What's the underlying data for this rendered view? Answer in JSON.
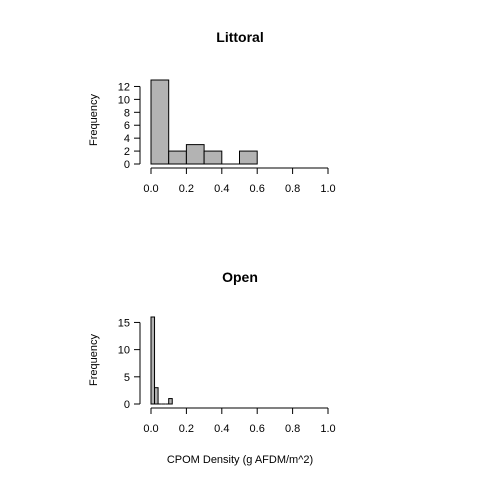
{
  "chart_data": [
    {
      "type": "bar",
      "title": "Littoral",
      "xlabel": "",
      "ylabel": "Frequency",
      "x_bin_edges": [
        0.0,
        0.1,
        0.2,
        0.3,
        0.4,
        0.5,
        0.6
      ],
      "values": [
        13,
        2,
        3,
        2,
        0,
        2
      ],
      "xlim": [
        0.0,
        1.0
      ],
      "ylim": [
        0,
        13
      ],
      "x_ticks": [
        "0.0",
        "0.2",
        "0.4",
        "0.6",
        "0.8",
        "1.0"
      ],
      "y_ticks": [
        "0",
        "2",
        "4",
        "6",
        "8",
        "10",
        "12"
      ],
      "grid": false,
      "bar_color": "#b3b3b3"
    },
    {
      "type": "bar",
      "title": "Open",
      "xlabel": "CPOM Density (g AFDM/m^2)",
      "ylabel": "Frequency",
      "x_bin_edges": [
        0.0,
        0.02,
        0.04,
        0.06,
        0.08,
        0.1,
        0.12
      ],
      "values": [
        16,
        3,
        0,
        0,
        0,
        1
      ],
      "xlim": [
        0.0,
        1.0
      ],
      "ylim": [
        0,
        16
      ],
      "x_ticks": [
        "0.0",
        "0.2",
        "0.4",
        "0.6",
        "0.8",
        "1.0"
      ],
      "y_ticks": [
        "0",
        "5",
        "10",
        "15"
      ],
      "grid": false,
      "bar_color": "#b3b3b3"
    }
  ]
}
